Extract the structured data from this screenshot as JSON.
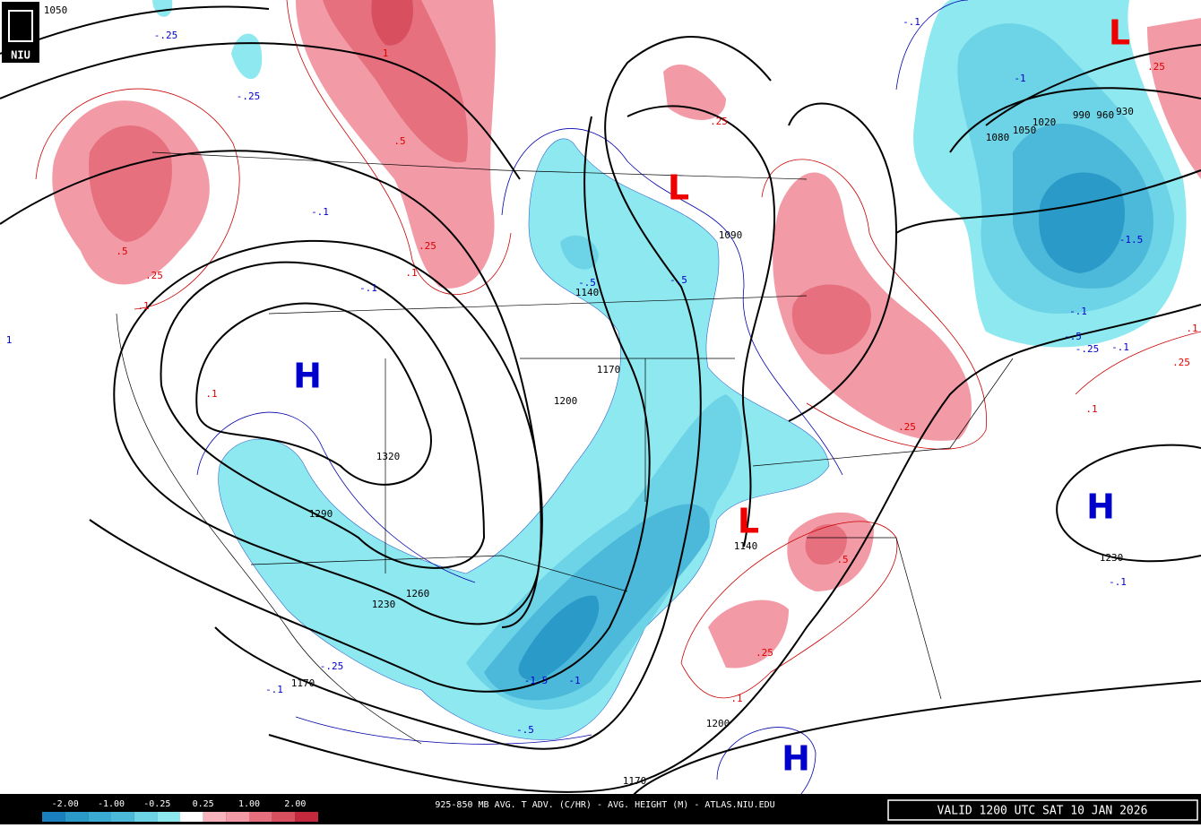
{
  "logo": "NIU",
  "footer": {
    "title": "925-850 MB AVG. T ADV. (C/HR) - AVG. HEIGHT (M) - ATLAS.NIU.EDU",
    "valid": "VALID 1200 UTC SAT 10 JAN 2026"
  },
  "colorbar": {
    "labels": [
      "-2.00",
      "-1.00",
      "-0.25",
      "0.25",
      "1.00",
      "2.00"
    ],
    "colors": [
      "#1a7fbf",
      "#2a9bc8",
      "#3aabd3",
      "#4cb9da",
      "#6dd3e6",
      "#8ee8f0",
      "#ffffff",
      "#f7b3bb",
      "#f29ba6",
      "#e6707e",
      "#d85060",
      "#c4283c"
    ]
  },
  "highs": [
    "H",
    "H",
    "H"
  ],
  "lows": [
    "L",
    "L",
    "L"
  ],
  "height_labels": [
    "1050",
    "1320",
    "1290",
    "1260",
    "1230",
    "1200",
    "1170",
    "1140",
    "1090",
    "1140",
    "1170",
    "1200",
    "1170",
    "1230",
    "1080",
    "1050",
    "1020",
    "990 960",
    "930"
  ],
  "warm_labels": [
    ".25",
    ".5",
    ".25",
    ".1",
    ".5",
    ".25",
    ".1",
    ".1",
    "1",
    ".25",
    ".5",
    ".25",
    ".1",
    ".25",
    ".1",
    ".25",
    ".1"
  ],
  "cold_labels": [
    "-.25",
    "-.25",
    "-.1",
    "-.1",
    "1",
    "-.5",
    "-.5",
    "-.25",
    "-.1",
    "-1.5",
    "-1",
    "-.5",
    "-.1",
    "-1",
    "-1.5",
    "-.1",
    "-.5",
    "-.25",
    "-.1",
    "-.1"
  ]
}
